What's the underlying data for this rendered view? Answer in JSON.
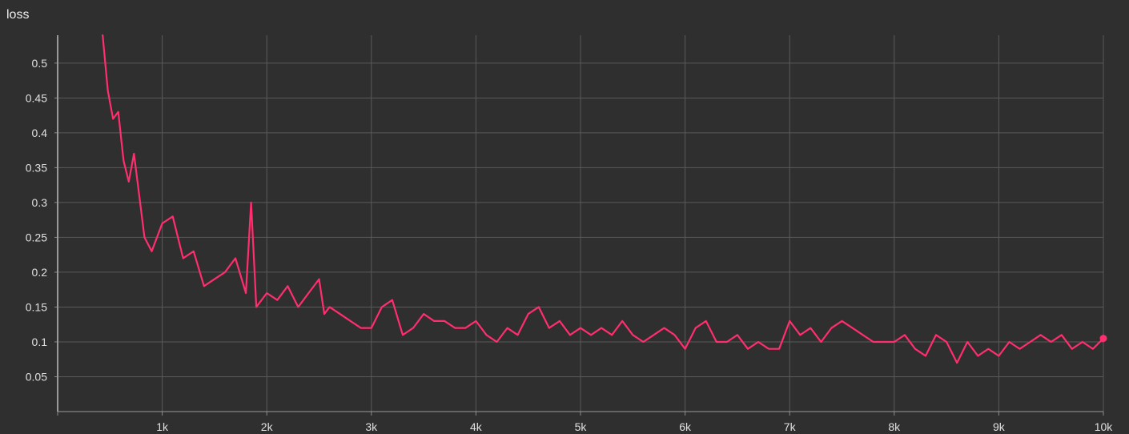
{
  "chart_data": {
    "type": "line",
    "title": "loss",
    "xlabel": "",
    "ylabel": "",
    "xlim": [
      0,
      10000
    ],
    "ylim": [
      0,
      0.54
    ],
    "x_ticks": [
      {
        "value": 1000,
        "label": "1k"
      },
      {
        "value": 2000,
        "label": "2k"
      },
      {
        "value": 3000,
        "label": "3k"
      },
      {
        "value": 4000,
        "label": "4k"
      },
      {
        "value": 5000,
        "label": "5k"
      },
      {
        "value": 6000,
        "label": "6k"
      },
      {
        "value": 7000,
        "label": "7k"
      },
      {
        "value": 8000,
        "label": "8k"
      },
      {
        "value": 9000,
        "label": "9k"
      },
      {
        "value": 10000,
        "label": "10k"
      }
    ],
    "y_ticks": [
      {
        "value": 0.05,
        "label": "0.05"
      },
      {
        "value": 0.1,
        "label": "0.1"
      },
      {
        "value": 0.15,
        "label": "0.15"
      },
      {
        "value": 0.2,
        "label": "0.2"
      },
      {
        "value": 0.25,
        "label": "0.25"
      },
      {
        "value": 0.3,
        "label": "0.3"
      },
      {
        "value": 0.35,
        "label": "0.35"
      },
      {
        "value": 0.4,
        "label": "0.4"
      },
      {
        "value": 0.45,
        "label": "0.45"
      },
      {
        "value": 0.5,
        "label": "0.5"
      }
    ],
    "grid": true,
    "series": [
      {
        "color": "#ff2e6e",
        "x": [
          430,
          480,
          530,
          580,
          630,
          680,
          730,
          780,
          830,
          900,
          1000,
          1100,
          1200,
          1300,
          1400,
          1500,
          1600,
          1700,
          1800,
          1850,
          1900,
          2000,
          2100,
          2200,
          2300,
          2400,
          2500,
          2550,
          2600,
          2700,
          2800,
          2900,
          3000,
          3100,
          3200,
          3300,
          3400,
          3500,
          3600,
          3700,
          3800,
          3900,
          4000,
          4100,
          4200,
          4300,
          4400,
          4500,
          4600,
          4700,
          4800,
          4900,
          5000,
          5100,
          5200,
          5300,
          5400,
          5500,
          5600,
          5700,
          5800,
          5900,
          6000,
          6100,
          6200,
          6300,
          6400,
          6500,
          6600,
          6700,
          6800,
          6900,
          7000,
          7100,
          7200,
          7300,
          7400,
          7500,
          7600,
          7700,
          7800,
          7900,
          8000,
          8100,
          8200,
          8300,
          8400,
          8500,
          8600,
          8700,
          8800,
          8900,
          9000,
          9100,
          9200,
          9300,
          9400,
          9500,
          9600,
          9700,
          9800,
          9900,
          10000
        ],
        "y": [
          0.54,
          0.46,
          0.42,
          0.43,
          0.36,
          0.33,
          0.37,
          0.31,
          0.25,
          0.23,
          0.27,
          0.28,
          0.22,
          0.23,
          0.18,
          0.19,
          0.2,
          0.22,
          0.17,
          0.3,
          0.15,
          0.17,
          0.16,
          0.18,
          0.15,
          0.17,
          0.19,
          0.14,
          0.15,
          0.14,
          0.13,
          0.12,
          0.12,
          0.15,
          0.16,
          0.11,
          0.12,
          0.14,
          0.13,
          0.13,
          0.12,
          0.12,
          0.13,
          0.11,
          0.1,
          0.12,
          0.11,
          0.14,
          0.15,
          0.12,
          0.13,
          0.11,
          0.12,
          0.11,
          0.12,
          0.11,
          0.13,
          0.11,
          0.1,
          0.11,
          0.12,
          0.11,
          0.09,
          0.12,
          0.13,
          0.1,
          0.1,
          0.11,
          0.09,
          0.1,
          0.09,
          0.09,
          0.13,
          0.11,
          0.12,
          0.1,
          0.12,
          0.13,
          0.12,
          0.11,
          0.1,
          0.1,
          0.1,
          0.11,
          0.09,
          0.08,
          0.11,
          0.1,
          0.07,
          0.1,
          0.08,
          0.09,
          0.08,
          0.1,
          0.09,
          0.1,
          0.11,
          0.1,
          0.11,
          0.09,
          0.1,
          0.09,
          0.105
        ]
      }
    ],
    "highlighted_point": {
      "x": 10000,
      "y": 0.105
    }
  }
}
